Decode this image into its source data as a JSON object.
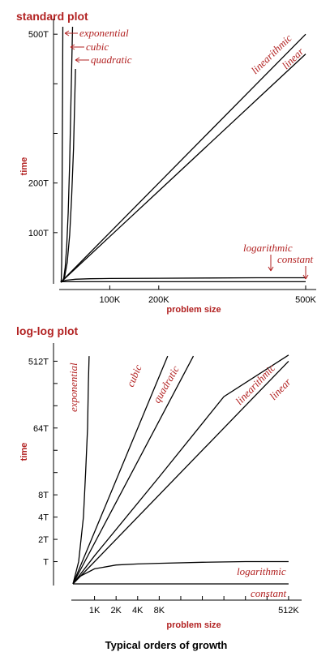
{
  "colors": {
    "accent": "#b22222",
    "curve": "#000000"
  },
  "caption": "Typical orders of growth",
  "chart_data": [
    {
      "type": "line",
      "title": "standard plot",
      "xlabel": "problem size",
      "ylabel": "time",
      "x_ticks": [
        {
          "value": 100,
          "label": "100K"
        },
        {
          "value": 200,
          "label": "200K"
        },
        {
          "value": 500,
          "label": "500K"
        }
      ],
      "y_ticks": [
        {
          "value": 100,
          "label": "100T"
        },
        {
          "value": 200,
          "label": "200T"
        },
        {
          "value": 500,
          "label": "500T"
        }
      ],
      "xlim": [
        0,
        505
      ],
      "ylim": [
        0,
        515
      ],
      "series": [
        {
          "name": "exponential",
          "x": [
            0,
            0.6,
            1.2,
            1.8,
            2.4,
            3.0,
            3.6,
            4.2
          ],
          "y": [
            0,
            2,
            8,
            40,
            120,
            260,
            400,
            515
          ]
        },
        {
          "name": "cubic",
          "x": [
            0,
            3,
            6,
            9,
            12,
            15,
            18,
            21,
            24
          ],
          "y": [
            0,
            1,
            8,
            30,
            70,
            140,
            240,
            380,
            515
          ]
        },
        {
          "name": "quadratic",
          "x": [
            0,
            4,
            8,
            13,
            18,
            22,
            26,
            30
          ],
          "y": [
            0,
            3,
            12,
            40,
            95,
            170,
            270,
            430
          ]
        },
        {
          "name": "linearithmic",
          "x": [
            0,
            100,
            200,
            300,
            400,
            500
          ],
          "y": [
            0,
            100,
            200,
            300,
            400,
            500
          ]
        },
        {
          "name": "linear",
          "x": [
            0,
            100,
            200,
            300,
            400,
            500
          ],
          "y": [
            0,
            92,
            184,
            276,
            368,
            460
          ]
        },
        {
          "name": "logarithmic",
          "x": [
            0,
            2,
            10,
            30,
            60,
            100,
            200,
            300,
            400,
            500
          ],
          "y": [
            0,
            2,
            4,
            6,
            7,
            7.5,
            8,
            8.5,
            9,
            9
          ]
        },
        {
          "name": "constant",
          "x": [
            0,
            500
          ],
          "y": [
            1,
            1
          ]
        }
      ]
    },
    {
      "type": "line",
      "title": "log-log plot",
      "xlabel": "problem size",
      "ylabel": "time",
      "scale": "log-log",
      "x_ticks": [
        {
          "value": 1,
          "label": "1K"
        },
        {
          "value": 2,
          "label": "2K"
        },
        {
          "value": 4,
          "label": "4K"
        },
        {
          "value": 8,
          "label": "8K"
        },
        {
          "value": 512,
          "label": "512K"
        }
      ],
      "y_ticks": [
        {
          "value": 1,
          "label": "T"
        },
        {
          "value": 2,
          "label": "2T"
        },
        {
          "value": 4,
          "label": "4T"
        },
        {
          "value": 8,
          "label": "8T"
        },
        {
          "value": 64,
          "label": "64T"
        },
        {
          "value": 512,
          "label": "512T"
        }
      ],
      "xlim": [
        0.5,
        600
      ],
      "ylim": [
        0.5,
        700
      ],
      "series": [
        {
          "name": "exponential",
          "x": [
            0.5,
            0.6,
            0.7,
            0.75,
            0.8,
            0.82,
            0.84
          ],
          "y": [
            0.5,
            1,
            4,
            16,
            64,
            256,
            600
          ]
        },
        {
          "name": "cubic",
          "x": [
            0.5,
            10.5
          ],
          "y": [
            0.5,
            600
          ]
        },
        {
          "name": "quadratic",
          "x": [
            0.5,
            24
          ],
          "y": [
            0.5,
            600
          ]
        },
        {
          "name": "linearithmic",
          "x": [
            0.5,
            1,
            8,
            64,
            512
          ],
          "y": [
            0.5,
            1.2,
            14,
            170,
            620
          ]
        },
        {
          "name": "linear",
          "x": [
            0.5,
            512
          ],
          "y": [
            0.5,
            512
          ]
        },
        {
          "name": "logarithmic",
          "x": [
            0.5,
            0.6,
            1,
            2,
            4,
            8,
            32,
            128,
            512
          ],
          "y": [
            0.5,
            0.62,
            0.8,
            0.9,
            0.93,
            0.95,
            0.98,
            1.0,
            1.0
          ]
        },
        {
          "name": "constant",
          "x": [
            0.5,
            512
          ],
          "y": [
            0.5,
            0.5
          ]
        }
      ]
    }
  ]
}
